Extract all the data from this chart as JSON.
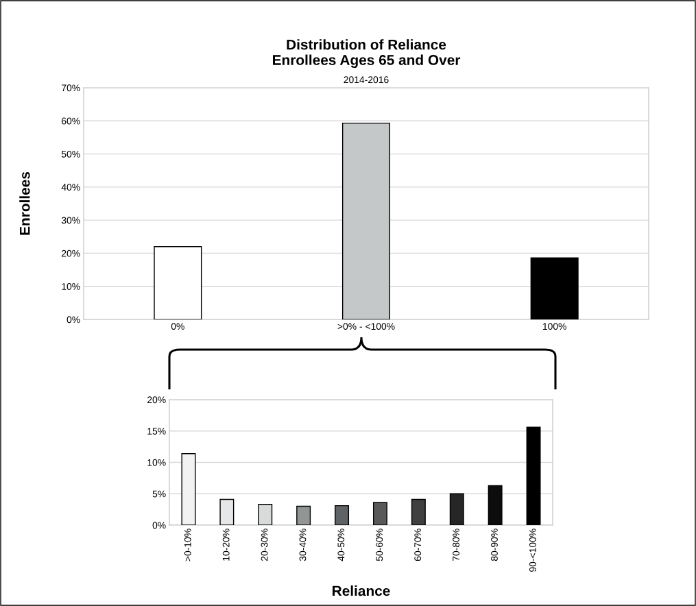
{
  "chart_data": [
    {
      "type": "bar",
      "title": "Distribution of Reliance\nEnrollees Ages 65 and Over",
      "subtitle": "2014-2016",
      "ylabel": "Enrollees",
      "categories": [
        "0%",
        ">0% - <100%",
        "100%"
      ],
      "values": [
        22.0,
        59.3,
        18.6
      ],
      "colors": [
        "#ffffff",
        "#c4c8c9",
        "#000000"
      ],
      "ylim": [
        0,
        70
      ],
      "yticks": [
        {
          "value": 0,
          "label": "0%"
        },
        {
          "value": 10,
          "label": "10%"
        },
        {
          "value": 20,
          "label": "20%"
        },
        {
          "value": 30,
          "label": "30%"
        },
        {
          "value": 40,
          "label": "40%"
        },
        {
          "value": 50,
          "label": "50%"
        },
        {
          "value": 60,
          "label": "60%"
        },
        {
          "value": 70,
          "label": "70%"
        }
      ],
      "grid": "y"
    },
    {
      "type": "bar",
      "xlabel": "Reliance",
      "categories": [
        ">0-10%",
        "10-20%",
        "20-30%",
        "30-40%",
        "40-50%",
        "50-60%",
        "60-70%",
        "70-80%",
        "80-90%",
        "90-<100%"
      ],
      "values": [
        11.4,
        4.1,
        3.3,
        3.0,
        3.1,
        3.6,
        4.1,
        5.0,
        6.3,
        15.6
      ],
      "colors": [
        "#f2f2f2",
        "#e6e7e8",
        "#d9dbda",
        "#929595",
        "#5f6365",
        "#595959",
        "#404040",
        "#262626",
        "#0d0d0d",
        "#000000"
      ],
      "ylim": [
        0,
        20
      ],
      "yticks": [
        {
          "value": 0,
          "label": "0%"
        },
        {
          "value": 5,
          "label": "5%"
        },
        {
          "value": 10,
          "label": "10%"
        },
        {
          "value": 15,
          "label": "15%"
        },
        {
          "value": 20,
          "label": "20%"
        }
      ],
      "grid": "y"
    }
  ]
}
